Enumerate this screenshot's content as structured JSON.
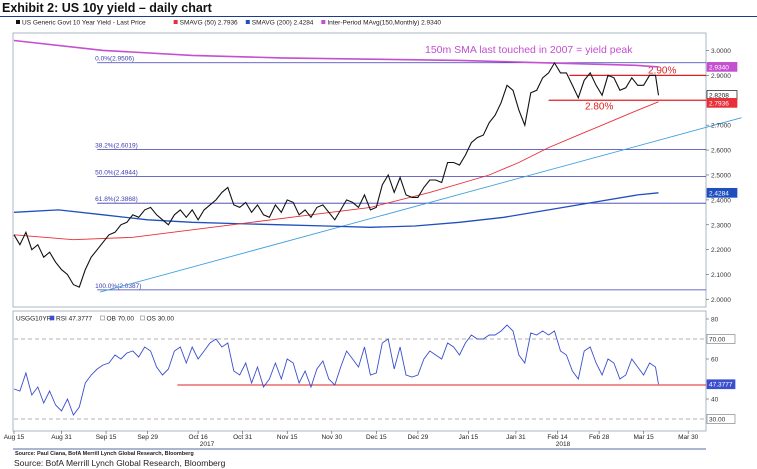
{
  "exhibit_title": "Exhibit 2: US 10y yield – daily chart",
  "source_inner": "Source: Paul Ciana, BofA Merrill Lynch Global Research, Bloomberg",
  "source": "Source: BofA Merrill Lynch Global Research, Bloomberg",
  "year_labels": [
    "2017",
    "2018"
  ],
  "colors": {
    "price": "#111111",
    "sma50": "#e8303a",
    "sma200": "#1f4fbf",
    "mavg150m": "#c44fd0",
    "trend": "#3fa0e0",
    "fib": "#3b3bb0",
    "rsi": "#3b4fcf",
    "red_level": "#e02020",
    "accent_box": "#1f3b8c"
  },
  "chart_data": [
    {
      "type": "line",
      "legend": [
        {
          "label": "US Generic Govt 10 Year Yield - Last Price",
          "color": "#111111"
        },
        {
          "label": "SMAVG (50) 2.7936",
          "color": "#e8303a"
        },
        {
          "label": "SMAVG (200) 2.4284",
          "color": "#1f4fbf"
        },
        {
          "label": "Inter-Period MAvg(150,Monthly) 2.9340",
          "color": "#c44fd0"
        }
      ],
      "annotation": "150m SMA last touched in 2007 = yield peak",
      "level_labels": [
        "2.90%",
        "2.80%"
      ],
      "levels": [
        2.9,
        2.8
      ],
      "fib_levels": [
        {
          "label": "0.0%(2.9506)",
          "value": 2.9506
        },
        {
          "label": "38.2%(2.6019)",
          "value": 2.6019
        },
        {
          "label": "50.0%(2.4944)",
          "value": 2.4944
        },
        {
          "label": "61.8%(2.3868)",
          "value": 2.3868
        },
        {
          "label": "100.0%(2.0387)",
          "value": 2.0387
        }
      ],
      "y_ticks": [
        "3.0000",
        "2.9000",
        "2.8000",
        "2.7000",
        "2.6000",
        "2.5000",
        "2.4000",
        "2.3000",
        "2.2000",
        "2.1000",
        "2.0000"
      ],
      "ylim": [
        1.97,
        3.07
      ],
      "value_tags": [
        {
          "label": "2.9340",
          "value": 2.934,
          "color": "#c44fd0"
        },
        {
          "label": "2.8208",
          "value": 2.8208,
          "color": "#111111"
        },
        {
          "label": "2.7936",
          "value": 2.7936,
          "color": "#e8303a"
        },
        {
          "label": "2.4284",
          "value": 2.4284,
          "color": "#1f4fbf"
        }
      ],
      "x_ticks": [
        "Aug 15",
        "Aug 31",
        "Sep 15",
        "Sep 29",
        "Oct 16",
        "Oct 31",
        "Nov 15",
        "Nov 30",
        "Dec 15",
        "Dec 29",
        "Jan 15",
        "Jan 31",
        "Feb 14",
        "Feb 28",
        "Mar 15",
        "Mar 30"
      ],
      "x_tick_days": [
        0,
        16,
        31,
        45,
        62,
        77,
        92,
        107,
        122,
        136,
        153,
        169,
        183,
        197,
        212,
        227
      ],
      "series": [
        {
          "name": "US Generic Govt 10 Year Yield - Last Price",
          "x": [
            0,
            2,
            4,
            6,
            8,
            10,
            12,
            14,
            16,
            18,
            20,
            22,
            24,
            26,
            28,
            30,
            32,
            34,
            36,
            38,
            40,
            42,
            44,
            46,
            48,
            50,
            52,
            54,
            56,
            58,
            60,
            62,
            64,
            66,
            68,
            70,
            72,
            74,
            76,
            78,
            80,
            82,
            84,
            86,
            88,
            90,
            92,
            94,
            96,
            98,
            100,
            102,
            104,
            106,
            108,
            110,
            112,
            114,
            116,
            118,
            120,
            122,
            124,
            126,
            128,
            130,
            132,
            134,
            136,
            138,
            140,
            142,
            144,
            146,
            148,
            150,
            152,
            154,
            156,
            158,
            160,
            162,
            164,
            166,
            168,
            170,
            172,
            174,
            176,
            178,
            180,
            182,
            184,
            186,
            188,
            190,
            192,
            194,
            196,
            198,
            200,
            202,
            204,
            206,
            208,
            210,
            212,
            214,
            216,
            217
          ],
          "y": [
            2.26,
            2.22,
            2.27,
            2.2,
            2.22,
            2.17,
            2.19,
            2.15,
            2.12,
            2.1,
            2.06,
            2.05,
            2.12,
            2.17,
            2.2,
            2.23,
            2.26,
            2.27,
            2.3,
            2.31,
            2.34,
            2.33,
            2.36,
            2.37,
            2.34,
            2.32,
            2.3,
            2.34,
            2.36,
            2.33,
            2.36,
            2.32,
            2.36,
            2.38,
            2.4,
            2.43,
            2.45,
            2.38,
            2.37,
            2.39,
            2.35,
            2.38,
            2.34,
            2.33,
            2.38,
            2.35,
            2.4,
            2.39,
            2.34,
            2.36,
            2.33,
            2.37,
            2.38,
            2.35,
            2.32,
            2.36,
            2.4,
            2.39,
            2.37,
            2.42,
            2.36,
            2.37,
            2.46,
            2.5,
            2.43,
            2.49,
            2.42,
            2.41,
            2.41,
            2.45,
            2.48,
            2.48,
            2.47,
            2.55,
            2.55,
            2.54,
            2.58,
            2.63,
            2.65,
            2.66,
            2.71,
            2.74,
            2.79,
            2.86,
            2.84,
            2.76,
            2.7,
            2.83,
            2.84,
            2.89,
            2.91,
            2.95,
            2.91,
            2.91,
            2.86,
            2.81,
            2.88,
            2.91,
            2.86,
            2.82,
            2.9,
            2.89,
            2.84,
            2.85,
            2.89,
            2.86,
            2.86,
            2.9,
            2.9,
            2.82
          ]
        },
        {
          "name": "SMAVG (50) 2.7936",
          "x": [
            0,
            20,
            40,
            60,
            80,
            100,
            120,
            140,
            160,
            170,
            180,
            190,
            200,
            210,
            217
          ],
          "y": [
            2.26,
            2.24,
            2.25,
            2.28,
            2.31,
            2.34,
            2.37,
            2.43,
            2.5,
            2.55,
            2.61,
            2.66,
            2.71,
            2.76,
            2.7936
          ]
        },
        {
          "name": "SMAVG (200) 2.4284",
          "x": [
            0,
            15,
            30,
            45,
            60,
            75,
            90,
            105,
            120,
            135,
            150,
            165,
            180,
            195,
            210,
            217
          ],
          "y": [
            2.35,
            2.36,
            2.34,
            2.32,
            2.31,
            2.305,
            2.3,
            2.295,
            2.29,
            2.295,
            2.31,
            2.33,
            2.36,
            2.39,
            2.42,
            2.4284
          ]
        },
        {
          "name": "Inter-Period MAvg(150,Monthly) 2.9340",
          "x": [
            0,
            30,
            60,
            90,
            120,
            150,
            180,
            210,
            217
          ],
          "y": [
            3.04,
            3.0,
            2.98,
            2.97,
            2.965,
            2.96,
            2.95,
            2.94,
            2.934
          ]
        },
        {
          "name": "trend",
          "x": [
            29,
            245
          ],
          "y": [
            2.03,
            2.73
          ]
        }
      ]
    },
    {
      "type": "line",
      "legend": [
        {
          "label": "USGG10YR",
          "color": "#111111"
        },
        {
          "label": "RSI 47.3777",
          "color": "#3b4fcf"
        },
        {
          "label": "OB 70.00",
          "color": "#888888"
        },
        {
          "label": "OS 30.00",
          "color": "#888888"
        }
      ],
      "y_ticks": [
        "80",
        "60",
        "40"
      ],
      "ylim": [
        24,
        84
      ],
      "value_tags": [
        {
          "label": "70.00",
          "value": 70
        },
        {
          "label": "47.3777",
          "value": 47.3777
        },
        {
          "label": "30.00",
          "value": 30
        }
      ],
      "overbought": 70,
      "oversold": 30,
      "support_level": 47,
      "series": [
        {
          "name": "RSI 47.3777",
          "x": [
            0,
            2,
            4,
            6,
            8,
            10,
            12,
            14,
            16,
            18,
            20,
            22,
            24,
            26,
            28,
            30,
            32,
            34,
            36,
            38,
            40,
            42,
            44,
            46,
            48,
            50,
            52,
            54,
            56,
            58,
            60,
            62,
            64,
            66,
            68,
            70,
            72,
            74,
            76,
            78,
            80,
            82,
            84,
            86,
            88,
            90,
            92,
            94,
            96,
            98,
            100,
            102,
            104,
            106,
            108,
            110,
            112,
            114,
            116,
            118,
            120,
            122,
            124,
            126,
            128,
            130,
            132,
            134,
            136,
            138,
            140,
            142,
            144,
            146,
            148,
            150,
            152,
            154,
            156,
            158,
            160,
            162,
            164,
            166,
            168,
            170,
            172,
            174,
            176,
            178,
            180,
            182,
            184,
            186,
            188,
            190,
            192,
            194,
            196,
            198,
            200,
            202,
            204,
            206,
            208,
            210,
            212,
            214,
            216,
            217
          ],
          "y": [
            45,
            44,
            53,
            42,
            46,
            38,
            44,
            37,
            34,
            40,
            32,
            36,
            48,
            52,
            55,
            57,
            58,
            62,
            60,
            63,
            64,
            61,
            66,
            64,
            56,
            52,
            55,
            64,
            66,
            58,
            66,
            60,
            64,
            68,
            70,
            66,
            68,
            54,
            52,
            58,
            48,
            56,
            46,
            50,
            58,
            50,
            60,
            58,
            48,
            54,
            46,
            55,
            59,
            50,
            47,
            56,
            64,
            60,
            56,
            66,
            52,
            53,
            68,
            70,
            55,
            66,
            52,
            51,
            52,
            60,
            64,
            62,
            60,
            68,
            66,
            62,
            68,
            72,
            70,
            70,
            72,
            72,
            74,
            77,
            74,
            62,
            58,
            73,
            72,
            74,
            72,
            74,
            64,
            62,
            54,
            50,
            64,
            66,
            58,
            52,
            60,
            58,
            50,
            52,
            60,
            56,
            52,
            58,
            56,
            47.38
          ]
        }
      ]
    }
  ]
}
